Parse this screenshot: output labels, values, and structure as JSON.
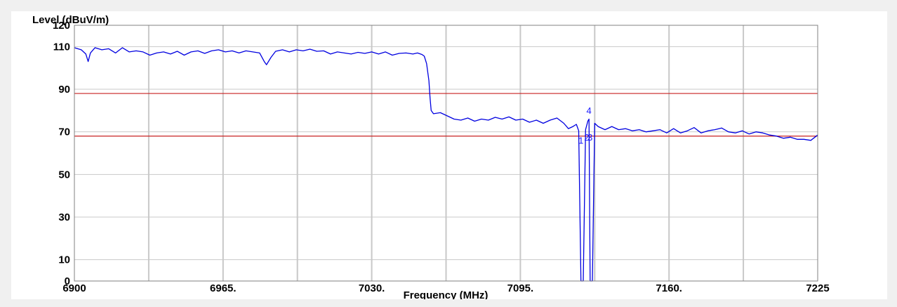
{
  "chart_data": {
    "type": "line",
    "ylabel": "Level (dBuV/m)",
    "xlabel": "Frequency (MHz)",
    "xlim": [
      6900,
      7225
    ],
    "ylim": [
      0,
      120
    ],
    "x_ticks": [
      {
        "value": 6900,
        "label": "6900"
      },
      {
        "value": 6965,
        "label": "6965."
      },
      {
        "value": 7030,
        "label": "7030."
      },
      {
        "value": 7095,
        "label": "7095."
      },
      {
        "value": 7160,
        "label": "7160."
      },
      {
        "value": 7225,
        "label": "7225"
      }
    ],
    "y_ticks": [
      {
        "value": 0,
        "label": "0"
      },
      {
        "value": 10,
        "label": "10"
      },
      {
        "value": 30,
        "label": "30"
      },
      {
        "value": 50,
        "label": "50"
      },
      {
        "value": 70,
        "label": "70"
      },
      {
        "value": 90,
        "label": "90"
      },
      {
        "value": 110,
        "label": "110"
      },
      {
        "value": 120,
        "label": "120"
      }
    ],
    "grid": true,
    "limit_lines": [
      {
        "value": 88,
        "color": "#c82020"
      },
      {
        "value": 68,
        "color": "#c82020"
      }
    ],
    "series": [
      {
        "color": "#0000e0",
        "points": [
          [
            6900,
            109.5
          ],
          [
            6903,
            108.5
          ],
          [
            6905,
            106.5
          ],
          [
            6906,
            103
          ],
          [
            6907,
            107
          ],
          [
            6909,
            109.5
          ],
          [
            6912,
            108.5
          ],
          [
            6915,
            109
          ],
          [
            6918,
            107
          ],
          [
            6921,
            109.5
          ],
          [
            6924,
            107.5
          ],
          [
            6927,
            108
          ],
          [
            6930,
            107.5
          ],
          [
            6933,
            106
          ],
          [
            6936,
            107
          ],
          [
            6939,
            107.5
          ],
          [
            6942,
            106.5
          ],
          [
            6945,
            107.8
          ],
          [
            6948,
            106
          ],
          [
            6951,
            107.5
          ],
          [
            6954,
            108
          ],
          [
            6957,
            106.8
          ],
          [
            6960,
            108
          ],
          [
            6963,
            108.5
          ],
          [
            6966,
            107.5
          ],
          [
            6969,
            108
          ],
          [
            6972,
            107
          ],
          [
            6975,
            108
          ],
          [
            6978,
            107.5
          ],
          [
            6981,
            107
          ],
          [
            6983,
            103
          ],
          [
            6984,
            101.5
          ],
          [
            6986,
            105
          ],
          [
            6988,
            107.8
          ],
          [
            6991,
            108.5
          ],
          [
            6994,
            107.5
          ],
          [
            6997,
            108.5
          ],
          [
            7000,
            108
          ],
          [
            7003,
            108.8
          ],
          [
            7006,
            107.8
          ],
          [
            7009,
            108
          ],
          [
            7012,
            106.5
          ],
          [
            7015,
            107.5
          ],
          [
            7018,
            107
          ],
          [
            7021,
            106.5
          ],
          [
            7024,
            107.3
          ],
          [
            7027,
            106.8
          ],
          [
            7030,
            107.5
          ],
          [
            7033,
            106.5
          ],
          [
            7036,
            107.5
          ],
          [
            7039,
            106
          ],
          [
            7042,
            106.8
          ],
          [
            7045,
            107
          ],
          [
            7048,
            106.5
          ],
          [
            7050,
            107
          ],
          [
            7052,
            106.3
          ],
          [
            7053,
            105.5
          ],
          [
            7054,
            102
          ],
          [
            7055,
            94
          ],
          [
            7055.5,
            86
          ],
          [
            7056,
            80
          ],
          [
            7057,
            78.5
          ],
          [
            7060,
            79
          ],
          [
            7063,
            77.5
          ],
          [
            7066,
            76
          ],
          [
            7069,
            75.5
          ],
          [
            7072,
            76.5
          ],
          [
            7075,
            75
          ],
          [
            7078,
            76
          ],
          [
            7081,
            75.5
          ],
          [
            7084,
            76.8
          ],
          [
            7087,
            76
          ],
          [
            7090,
            77
          ],
          [
            7093,
            75.5
          ],
          [
            7096,
            76
          ],
          [
            7099,
            74.5
          ],
          [
            7102,
            75.5
          ],
          [
            7105,
            74
          ],
          [
            7108,
            75.5
          ],
          [
            7111,
            76.5
          ],
          [
            7114,
            74
          ],
          [
            7116,
            71.5
          ],
          [
            7118,
            72.5
          ],
          [
            7119.5,
            73.5
          ],
          [
            7120.5,
            70.5
          ],
          [
            7121.5,
            0
          ],
          [
            7122.5,
            0
          ],
          [
            7123.5,
            71
          ],
          [
            7124.5,
            75
          ],
          [
            7125,
            76
          ],
          [
            7125.5,
            0
          ],
          [
            7126.5,
            0
          ],
          [
            7127.5,
            74
          ],
          [
            7129,
            72.5
          ],
          [
            7132,
            71
          ],
          [
            7135,
            72.5
          ],
          [
            7138,
            71
          ],
          [
            7141,
            71.5
          ],
          [
            7144,
            70.5
          ],
          [
            7147,
            71
          ],
          [
            7150,
            70
          ],
          [
            7153,
            70.5
          ],
          [
            7156,
            71
          ],
          [
            7159,
            69.5
          ],
          [
            7162,
            71.5
          ],
          [
            7165,
            69.5
          ],
          [
            7168,
            70.5
          ],
          [
            7171,
            72
          ],
          [
            7174,
            69.5
          ],
          [
            7177,
            70.5
          ],
          [
            7180,
            71
          ],
          [
            7183,
            71.8
          ],
          [
            7186,
            70
          ],
          [
            7189,
            69.5
          ],
          [
            7192,
            70.5
          ],
          [
            7195,
            69
          ],
          [
            7198,
            70
          ],
          [
            7201,
            69.5
          ],
          [
            7204,
            68.5
          ],
          [
            7207,
            68
          ],
          [
            7210,
            67
          ],
          [
            7213,
            67.5
          ],
          [
            7216,
            66.5
          ],
          [
            7219,
            66.5
          ],
          [
            7222,
            66
          ],
          [
            7225,
            68.5
          ]
        ]
      }
    ],
    "markers": [
      {
        "label": "1",
        "x": 7121.5,
        "y": 64.5
      },
      {
        "label": "2",
        "x": 7124,
        "y": 66
      },
      {
        "label": "3",
        "x": 7125.5,
        "y": 66
      },
      {
        "label": "4",
        "x": 7125,
        "y": 78.5
      }
    ]
  }
}
